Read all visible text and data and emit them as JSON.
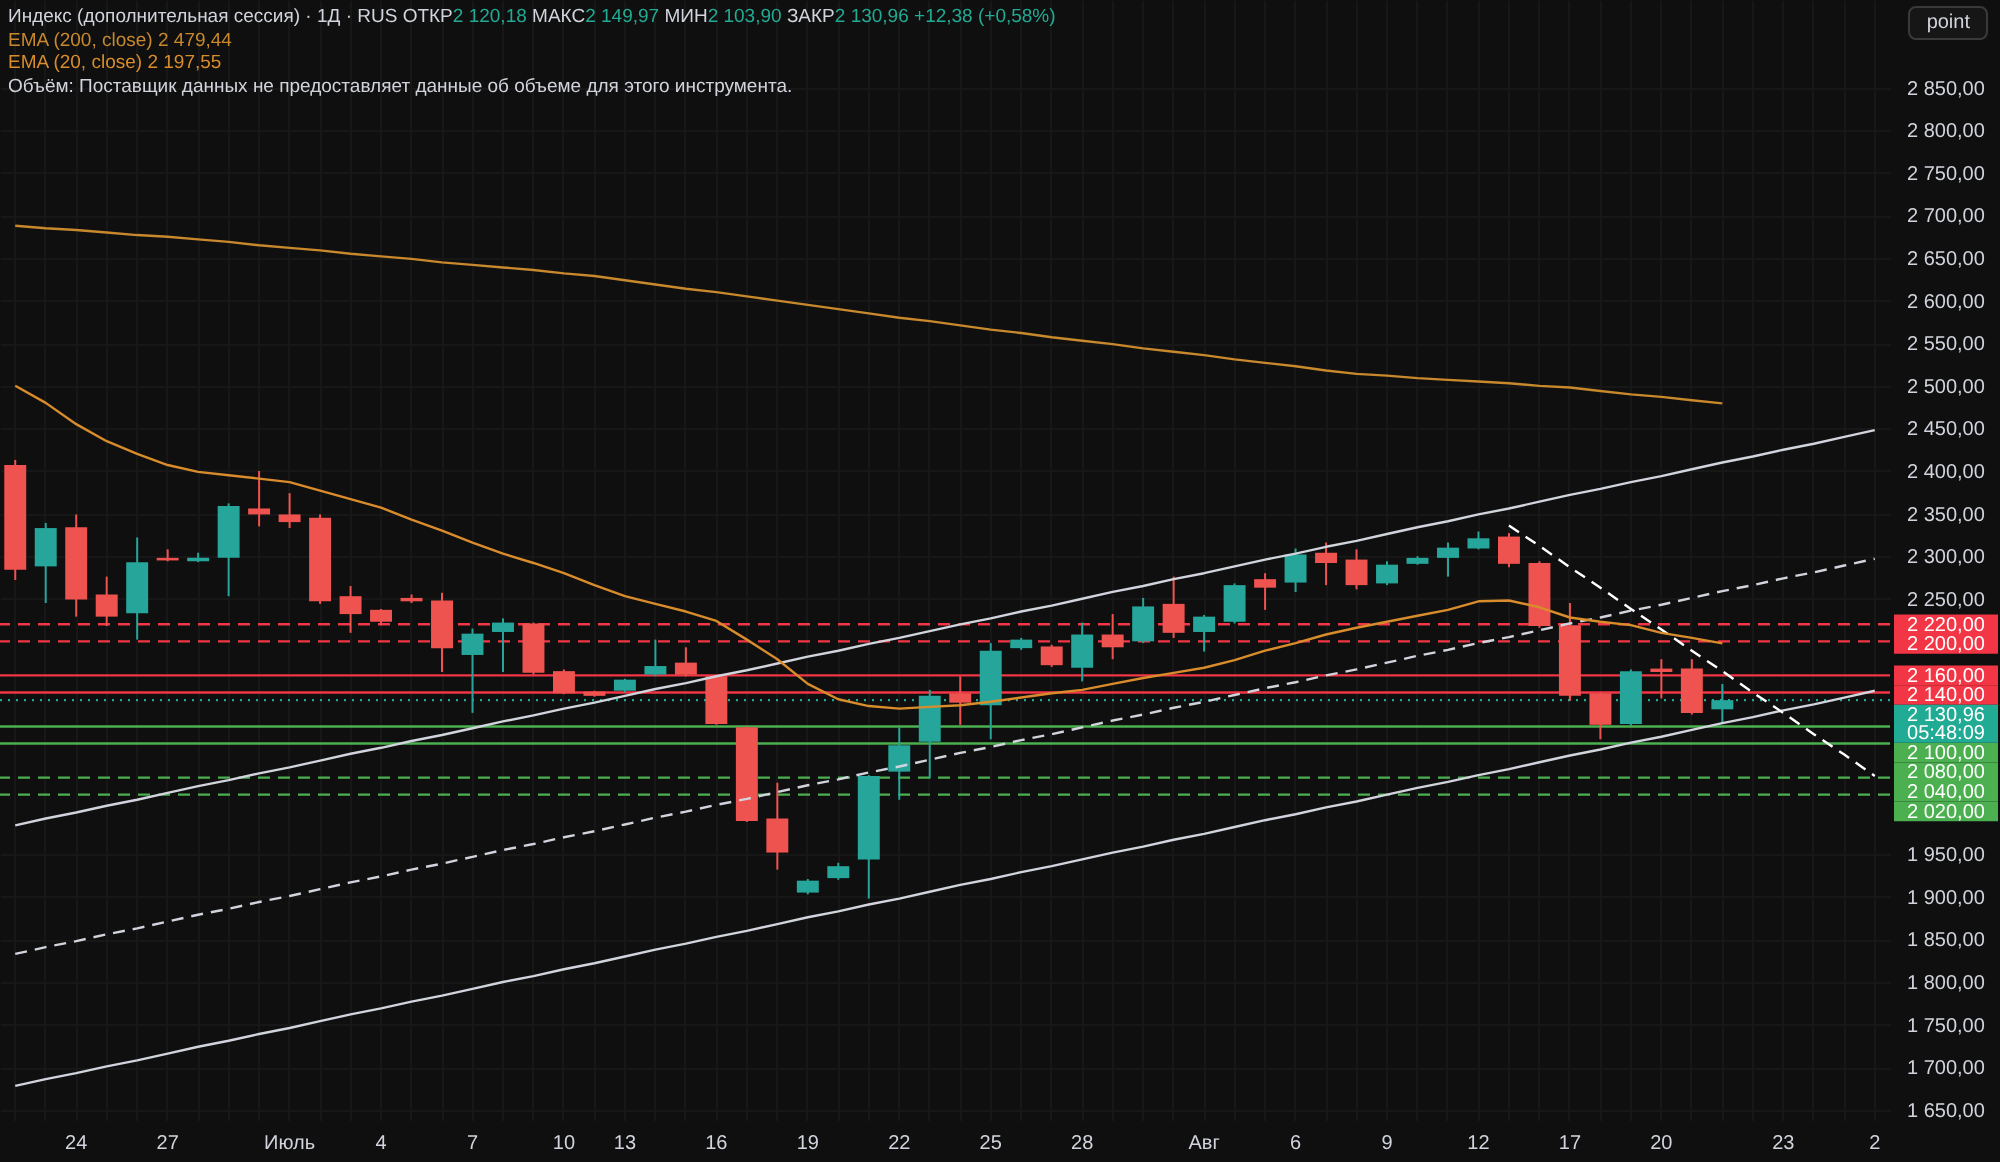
{
  "chart_data": {
    "type": "candlestick",
    "title": "Индекс (дополнительная сессия) · 1Д · RUS",
    "subtitle": "ОТКР2 120,18 МАКС2 149,97 МИН2 103,90 ЗАКР2 130,96 +12,38 (+0,58%)",
    "annotations": [
      "Объём: Поставщик данных не предоставляет данные об объеме для этого инструмента.",
      "05:48:09",
      "point",
      "2 479,44",
      "2 197,55"
    ],
    "categories": [
      null,
      null,
      "24",
      null,
      null,
      "27",
      null,
      null,
      null,
      "Июль",
      null,
      null,
      "4",
      null,
      null,
      "7",
      null,
      null,
      "10",
      null,
      "13",
      null,
      null,
      "16",
      null,
      null,
      "19",
      null,
      null,
      "22",
      null,
      null,
      "25",
      null,
      null,
      "28",
      null,
      null,
      null,
      "Авг",
      null,
      null,
      "6",
      null,
      null,
      "9",
      null,
      null,
      "12",
      null,
      null,
      "17",
      null,
      null,
      "20",
      null,
      null,
      null,
      "23",
      null,
      null,
      "2"
    ],
    "ohlc": [
      [
        2407,
        2413,
        2272,
        2284
      ],
      [
        2288,
        2339,
        2245,
        2333
      ],
      [
        2334,
        2349,
        2229,
        2249
      ],
      [
        2255,
        2276,
        2218,
        2229
      ],
      [
        2233,
        2322,
        2202,
        2293
      ],
      [
        2298,
        2308,
        2294,
        2295
      ],
      [
        2294,
        2304,
        2293,
        2298
      ],
      [
        2298,
        2362,
        2253,
        2359
      ],
      [
        2356,
        2400,
        2335,
        2349
      ],
      [
        2349,
        2374,
        2333,
        2340
      ],
      [
        2345,
        2349,
        2244,
        2247
      ],
      [
        2253,
        2265,
        2210,
        2232
      ],
      [
        2237,
        2238,
        2219,
        2223
      ],
      [
        2251,
        2255,
        2245,
        2247
      ],
      [
        2248,
        2257,
        2164,
        2192
      ],
      [
        2184,
        2215,
        2116,
        2209
      ],
      [
        2211,
        2227,
        2164,
        2222
      ],
      [
        2221,
        2222,
        2161,
        2163
      ],
      [
        2165,
        2167,
        2138,
        2139
      ],
      [
        2141,
        2142,
        2135,
        2136
      ],
      [
        2142,
        2156,
        2140,
        2155
      ],
      [
        2161,
        2202,
        2159,
        2171
      ],
      [
        2175,
        2193,
        2159,
        2161
      ],
      [
        2159,
        2160,
        2102,
        2103
      ],
      [
        2099,
        2100,
        1988,
        1989
      ],
      [
        1992,
        2034,
        1932,
        1952
      ],
      [
        1905,
        1921,
        1903,
        1919
      ],
      [
        1922,
        1940,
        1920,
        1936
      ],
      [
        1944,
        2043,
        1898,
        2042
      ],
      [
        2047,
        2099,
        2014,
        2078
      ],
      [
        2082,
        2143,
        2039,
        2136
      ],
      [
        2139,
        2159,
        2102,
        2128
      ],
      [
        2125,
        2198,
        2085,
        2189
      ],
      [
        2192,
        2204,
        2190,
        2202
      ],
      [
        2194,
        2196,
        2170,
        2172
      ],
      [
        2169,
        2222,
        2153,
        2208
      ],
      [
        2208,
        2232,
        2179,
        2193
      ],
      [
        2200,
        2251,
        2198,
        2241
      ],
      [
        2244,
        2276,
        2204,
        2210
      ],
      [
        2211,
        2231,
        2188,
        2229
      ],
      [
        2223,
        2268,
        2221,
        2266
      ],
      [
        2273,
        2280,
        2237,
        2263
      ],
      [
        2269,
        2309,
        2258,
        2302
      ],
      [
        2304,
        2316,
        2266,
        2292
      ],
      [
        2296,
        2308,
        2261,
        2266
      ],
      [
        2268,
        2294,
        2266,
        2290
      ],
      [
        2291,
        2300,
        2290,
        2298
      ],
      [
        2298,
        2316,
        2276,
        2310
      ],
      [
        2309,
        2329,
        2308,
        2321
      ],
      [
        2323,
        2327,
        2287,
        2291
      ],
      [
        2292,
        2294,
        2216,
        2218
      ],
      [
        2219,
        2245,
        2130,
        2136
      ],
      [
        2139,
        2140,
        2085,
        2102
      ],
      [
        2103,
        2167,
        2101,
        2165
      ],
      [
        2168,
        2179,
        2133,
        2164
      ],
      [
        2168,
        2179,
        2114,
        2116
      ],
      [
        2120.18,
        2149.97,
        2103.9,
        2130.96
      ],
      null,
      null,
      null,
      null,
      null
    ],
    "colors": [
      "#ef5350",
      "#26a69a",
      "#ef5350",
      "#ef5350",
      "#26a69a",
      "#ef5350",
      "#26a69a",
      "#26a69a",
      "#ef5350",
      "#ef5350",
      "#ef5350",
      "#ef5350",
      "#ef5350",
      "#ef5350",
      "#ef5350",
      "#26a69a",
      "#26a69a",
      "#ef5350",
      "#ef5350",
      "#ef5350",
      "#26a69a",
      "#26a69a",
      "#ef5350",
      "#ef5350",
      "#ef5350",
      "#ef5350",
      "#26a69a",
      "#26a69a",
      "#26a69a",
      "#26a69a",
      "#26a69a",
      "#ef5350",
      "#26a69a",
      "#26a69a",
      "#ef5350",
      "#26a69a",
      "#ef5350",
      "#26a69a",
      "#ef5350",
      "#26a69a",
      "#26a69a",
      "#ef5350",
      "#26a69a",
      "#ef5350",
      "#ef5350",
      "#26a69a",
      "#26a69a",
      "#26a69a",
      "#26a69a",
      "#ef5350",
      "#ef5350",
      "#ef5350",
      "#ef5350",
      "#26a69a",
      "#ef5350",
      "#ef5350",
      "#26a69a",
      null,
      null,
      null,
      null,
      null
    ],
    "series": [
      {
        "type": "line",
        "color": "#d1d4dc",
        "line_style": "solid",
        "values": [
          1984,
          1992,
          1999,
          2007,
          2014,
          2022,
          2030,
          2037,
          2045,
          2052,
          2060,
          2068,
          2075,
          2083,
          2090,
          2098,
          2106,
          2113,
          2121,
          2128,
          2136,
          2144,
          2151,
          2159,
          2166,
          2174,
          2182,
          2189,
          2197,
          2204,
          2212,
          2220,
          2227,
          2235,
          2242,
          2250,
          2258,
          2265,
          2273,
          2280,
          2288,
          2296,
          2303,
          2311,
          2318,
          2326,
          2334,
          2341,
          2349,
          2356,
          2364,
          2372,
          2379,
          2387,
          2394,
          2402,
          2410,
          2417,
          2425,
          2432,
          2440,
          2448
        ]
      },
      {
        "type": "line",
        "color": "#d1d4dc",
        "line_style": "dashed",
        "values": [
          1833,
          1841,
          1848,
          1856,
          1863,
          1871,
          1879,
          1886,
          1894,
          1901,
          1909,
          1917,
          1924,
          1932,
          1939,
          1947,
          1955,
          1962,
          1970,
          1977,
          1985,
          1993,
          2000,
          2008,
          2015,
          2023,
          2031,
          2038,
          2046,
          2053,
          2061,
          2069,
          2076,
          2084,
          2091,
          2099,
          2107,
          2114,
          2122,
          2129,
          2137,
          2145,
          2152,
          2160,
          2167,
          2175,
          2183,
          2190,
          2198,
          2205,
          2213,
          2221,
          2228,
          2236,
          2243,
          2251,
          2259,
          2266,
          2274,
          2281,
          2289,
          2297
        ]
      },
      {
        "type": "line",
        "color": "#d1d4dc",
        "line_style": "solid",
        "values": [
          1678,
          1686,
          1693,
          1701,
          1708,
          1716,
          1724,
          1731,
          1739,
          1746,
          1754,
          1762,
          1769,
          1777,
          1784,
          1792,
          1800,
          1807,
          1815,
          1822,
          1830,
          1838,
          1845,
          1853,
          1860,
          1868,
          1876,
          1883,
          1891,
          1898,
          1906,
          1914,
          1921,
          1929,
          1936,
          1944,
          1952,
          1959,
          1967,
          1974,
          1982,
          1990,
          1997,
          2005,
          2012,
          2020,
          2028,
          2035,
          2043,
          2050,
          2058,
          2066,
          2073,
          2081,
          2088,
          2096,
          2104,
          2111,
          2119,
          2126,
          2134,
          2142
        ]
      },
      {
        "type": "line",
        "color": "#ffffff",
        "line_style": "dashed",
        "values": [
          null,
          null,
          null,
          null,
          null,
          null,
          null,
          null,
          null,
          null,
          null,
          null,
          null,
          null,
          null,
          null,
          null,
          null,
          null,
          null,
          null,
          null,
          null,
          null,
          null,
          null,
          null,
          null,
          null,
          null,
          null,
          null,
          null,
          null,
          null,
          null,
          null,
          null,
          null,
          null,
          null,
          null,
          null,
          null,
          null,
          null,
          null,
          null,
          null,
          2336,
          2312,
          2287,
          2263,
          2238,
          2214,
          2189,
          2165,
          2140,
          2116,
          2091,
          2067,
          2042
        ]
      },
      {
        "type": "line",
        "name": "EMA (200, close)",
        "color": "#c8882c",
        "line_style": "solid",
        "values": [
          2688,
          2685,
          2683,
          2680,
          2677,
          2675,
          2672,
          2669,
          2665,
          2662,
          2659,
          2655,
          2652,
          2649,
          2645,
          2642,
          2639,
          2636,
          2632,
          2629,
          2624,
          2619,
          2614,
          2610,
          2605,
          2600,
          2595,
          2590,
          2585,
          2580,
          2576,
          2571,
          2566,
          2562,
          2557,
          2553,
          2549,
          2544,
          2540,
          2536,
          2531,
          2527,
          2523,
          2518,
          2514,
          2512,
          2509,
          2507,
          2505,
          2503,
          2500,
          2498,
          2494,
          2490,
          2487,
          2483,
          2479.44,
          null,
          null,
          null,
          null,
          null
        ]
      },
      {
        "type": "line",
        "name": "EMA (20, close)",
        "color": "#d98c2b",
        "line_style": "solid",
        "values": [
          2500,
          2480,
          2455,
          2435,
          2420,
          2407,
          2399,
          2395,
          2391,
          2387,
          2377,
          2367,
          2357,
          2343,
          2330,
          2316,
          2303,
          2292,
          2280,
          2266,
          2253,
          2244,
          2235,
          2224,
          2202,
          2179,
          2150,
          2132,
          2124,
          2121,
          2123,
          2125,
          2129,
          2134,
          2139,
          2143,
          2150,
          2157,
          2163,
          2169,
          2178,
          2189,
          2198,
          2208,
          2216,
          2223,
          2230,
          2237,
          2247,
          2248,
          2240,
          2228,
          2223,
          2219,
          2210,
          2204,
          2197.55,
          null,
          null,
          null,
          null,
          null
        ]
      }
    ],
    "ref_lines": [
      {
        "axis": "y",
        "value": 2220,
        "label": "2 220,00",
        "color": "#f23645",
        "line_style": "dashed"
      },
      {
        "axis": "y",
        "value": 2200,
        "label": "2 200,00",
        "color": "#f23645",
        "line_style": "dashed"
      },
      {
        "axis": "y",
        "value": 2160,
        "label": "2 160,00",
        "color": "#f23645",
        "line_style": "solid"
      },
      {
        "axis": "y",
        "value": 2140,
        "label": "2 140,00",
        "color": "#f23645",
        "line_style": "solid"
      },
      {
        "axis": "y",
        "value": 2100,
        "label": "2 100,00",
        "color": "#4caf50",
        "line_style": "solid"
      },
      {
        "axis": "y",
        "value": 2080,
        "label": "2 080,00",
        "color": "#4caf50",
        "line_style": "solid"
      },
      {
        "axis": "y",
        "value": 2040,
        "label": "2 040,00",
        "color": "#4caf50",
        "line_style": "dashed"
      },
      {
        "axis": "y",
        "value": 2020,
        "label": "2 020,00",
        "color": "#4caf50",
        "line_style": "dashed"
      },
      {
        "axis": "y",
        "value": 2130.96,
        "label": "2 130,96",
        "color": "#22ab94",
        "line_style": "dotted"
      }
    ],
    "ylim": [
      1638,
      2953
    ],
    "yticks": [
      {
        "value": 1650,
        "label": "1 650,00"
      },
      {
        "value": 1700,
        "label": "1 700,00"
      },
      {
        "value": 1750,
        "label": "1 750,00"
      },
      {
        "value": 1800,
        "label": "1 800,00"
      },
      {
        "value": 1850,
        "label": "1 850,00"
      },
      {
        "value": 1900,
        "label": "1 900,00"
      },
      {
        "value": 1950,
        "label": "1 950,00"
      },
      {
        "value": 2250,
        "label": "2 250,00"
      },
      {
        "value": 2300,
        "label": "2 300,00"
      },
      {
        "value": 2350,
        "label": "2 350,00"
      },
      {
        "value": 2400,
        "label": "2 400,00"
      },
      {
        "value": 2450,
        "label": "2 450,00"
      },
      {
        "value": 2500,
        "label": "2 500,00"
      },
      {
        "value": 2550,
        "label": "2 550,00"
      },
      {
        "value": 2600,
        "label": "2 600,00"
      },
      {
        "value": 2650,
        "label": "2 650,00"
      },
      {
        "value": 2700,
        "label": "2 700,00"
      },
      {
        "value": 2750,
        "label": "2 750,00"
      },
      {
        "value": 2800,
        "label": "2 800,00"
      },
      {
        "value": 2850,
        "label": "2 850,00"
      }
    ],
    "grid": true,
    "legend": "top left"
  }
}
